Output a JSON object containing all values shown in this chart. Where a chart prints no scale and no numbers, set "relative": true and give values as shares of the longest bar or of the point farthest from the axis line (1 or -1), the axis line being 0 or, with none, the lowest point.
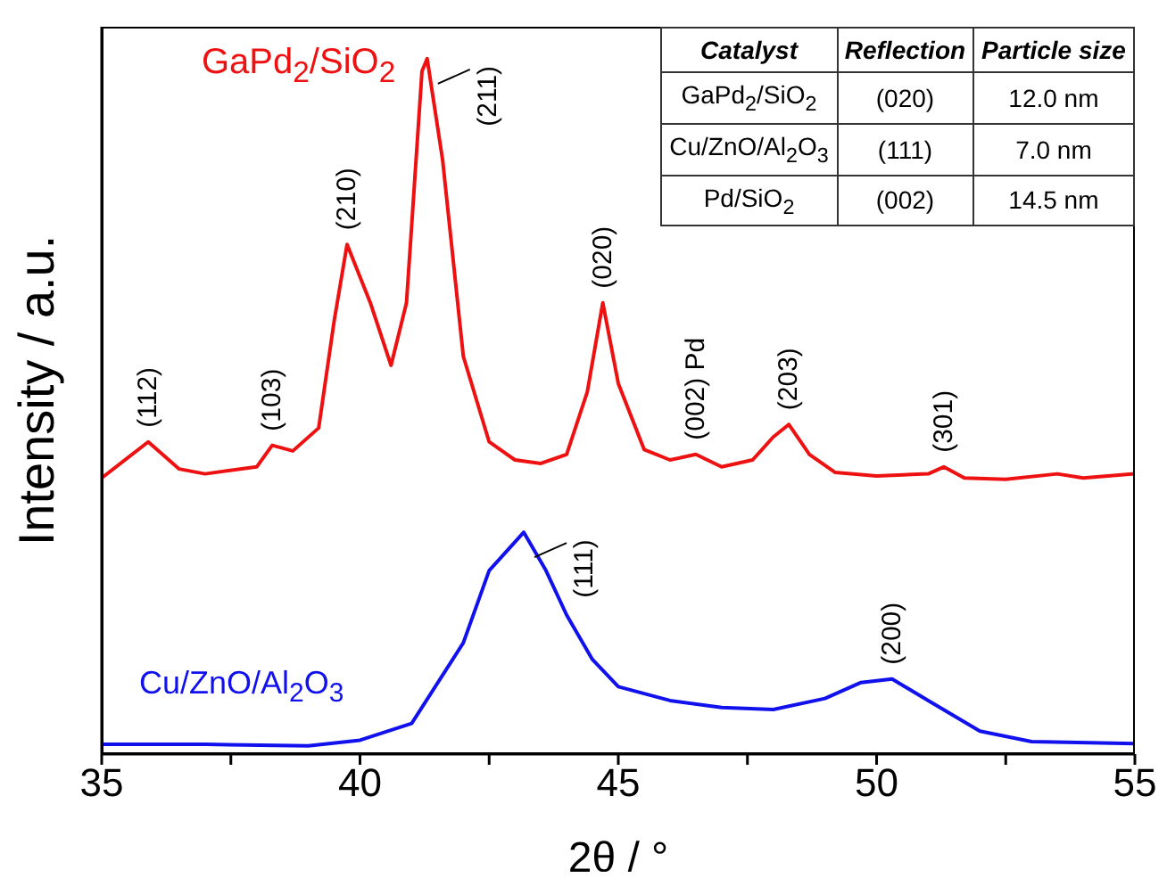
{
  "chart_data": {
    "type": "line",
    "relative": true,
    "xlabel": "2θ / °",
    "ylabel": "Intensity / a.u.",
    "xlim": [
      35,
      55
    ],
    "xticks": [
      35,
      {
        "value": 37.5,
        "label": null
      },
      40,
      {
        "value": 42.5,
        "label": null
      },
      45,
      {
        "value": 47.5,
        "label": null
      },
      50,
      {
        "value": 52.5,
        "label": null
      },
      55
    ],
    "grid": false,
    "marker": "none",
    "line_style": "solid",
    "series": [
      {
        "name": "GaPd$_{2}$/SiO$_{2}$",
        "color": "#ee1111",
        "x": [
          35,
          35.9,
          36.5,
          37,
          38,
          38.3,
          38.7,
          39.2,
          39.5,
          39.75,
          40.2,
          40.6,
          40.9,
          41.2,
          41.3,
          41.6,
          42,
          42.5,
          43,
          43.5,
          44,
          44.4,
          44.7,
          45,
          45.5,
          46,
          46.5,
          47,
          47.6,
          48,
          48.3,
          48.7,
          49.2,
          50,
          51,
          51.3,
          51.7,
          52.5,
          53.5,
          54,
          55
        ],
        "values": [
          0.397,
          0.449,
          0.41,
          0.403,
          0.413,
          0.444,
          0.436,
          0.469,
          0.623,
          0.733,
          0.649,
          0.559,
          0.649,
          0.982,
          1,
          0.854,
          0.572,
          0.449,
          0.423,
          0.418,
          0.431,
          0.521,
          0.649,
          0.533,
          0.438,
          0.423,
          0.431,
          0.413,
          0.423,
          0.456,
          0.474,
          0.431,
          0.405,
          0.4,
          0.403,
          0.413,
          0.397,
          0.395,
          0.403,
          0.397,
          0.403
        ]
      },
      {
        "name": "Cu/ZnO/Al$_{2}$O$_{3}$",
        "color": "#1111ee",
        "x": [
          35,
          37,
          39,
          40,
          41,
          42,
          42.5,
          43.17,
          43.6,
          44,
          44.5,
          45,
          46,
          47,
          48,
          49,
          49.7,
          50.3,
          51,
          52,
          53,
          55
        ],
        "values": [
          0.014,
          0.014,
          0.012,
          0.02,
          0.044,
          0.16,
          0.264,
          0.319,
          0.264,
          0.2,
          0.136,
          0.097,
          0.077,
          0.067,
          0.064,
          0.08,
          0.103,
          0.108,
          0.077,
          0.033,
          0.018,
          0.015
        ]
      }
    ],
    "annotations": [
      "Catalyst",
      "Reflection",
      "Particle size",
      "GaPd$_{2}$/SiO$_{2}$",
      "(020)",
      "12.0 nm",
      "Cu/ZnO/Al$_{2}$O$_{3}$",
      "(111)",
      "7.0 nm",
      "Pd/SiO$_{2}$",
      "(002)",
      "14.5 nm",
      {
        "text": "(112)",
        "x": 35.9,
        "y": 0.449
      },
      {
        "text": "(103)",
        "x": 38.3,
        "y": 0.444
      },
      {
        "text": "(210)",
        "x": 39.75,
        "y": 0.733
      },
      {
        "text": "(211)",
        "x": 41.3,
        "y": 1
      },
      {
        "text": "(020)",
        "x": 44.7,
        "y": 0.649
      },
      {
        "text": "(002) Pd",
        "x": 46.5,
        "y": 0.431
      },
      {
        "text": "(203)",
        "x": 48.3,
        "y": 0.474
      },
      {
        "text": "(301)",
        "x": 51.3,
        "y": 0.413
      },
      {
        "text": "(111)",
        "x": 43.17,
        "y": 0.319
      },
      {
        "text": "(200)",
        "x": 50.3,
        "y": 0.108
      }
    ]
  }
}
